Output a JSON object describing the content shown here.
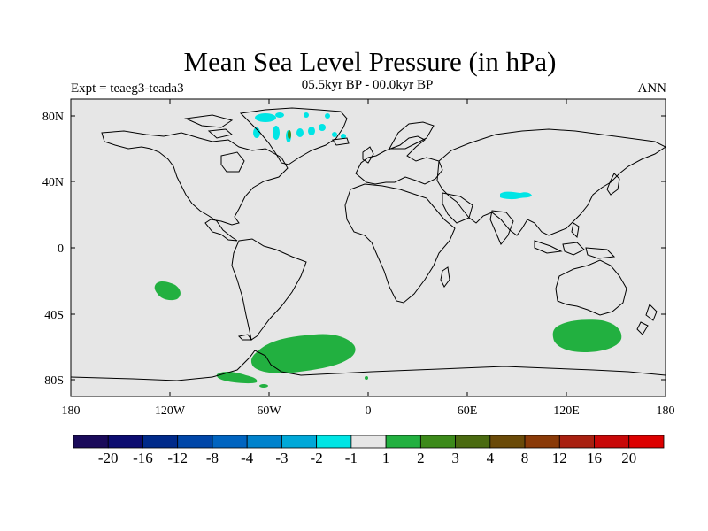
{
  "header": {
    "title": "Mean Sea Level Pressure (in hPa)",
    "subtitle": "05.5kyr BP - 00.0kyr BP",
    "left_label": "Expt = teaeg3-teada3",
    "right_label": "ANN"
  },
  "map": {
    "background_color": "#e6e6e6",
    "coastline_color": "#000000",
    "x_tick_labels": [
      "180",
      "120W",
      "60W",
      "0",
      "60E",
      "120E",
      "180"
    ],
    "y_tick_labels": [
      "80N",
      "40N",
      "0",
      "40S",
      "80S"
    ],
    "anomaly_regions": [
      {
        "name": "Greenland",
        "color": "#00e5e5",
        "level": "-1"
      },
      {
        "name": "Tibetan Plateau",
        "color": "#00e5e5",
        "level": "-1"
      },
      {
        "name": "South Pacific",
        "color": "#22b040",
        "level": "1"
      },
      {
        "name": "South Atlantic",
        "color": "#22b040",
        "level": "1"
      },
      {
        "name": "Southern Ocean south of Australia",
        "color": "#22b040",
        "level": "1"
      },
      {
        "name": "Antarctic Peninsula",
        "color": "#22b040",
        "level": "1"
      }
    ]
  },
  "colorbar": {
    "labels": [
      "-20",
      "-16",
      "-12",
      "-8",
      "-4",
      "-3",
      "-2",
      "-1",
      "1",
      "2",
      "3",
      "4",
      "8",
      "12",
      "16",
      "20"
    ],
    "colors": [
      "#1a0a5a",
      "#0c0c70",
      "#002a8a",
      "#0046a8",
      "#0064c0",
      "#0082cc",
      "#00a8d8",
      "#00e5e5",
      "#e6e6e6",
      "#22b040",
      "#3c8a1a",
      "#4a6a10",
      "#6a4a08",
      "#8a3a08",
      "#a82010",
      "#c80808",
      "#dc0000"
    ]
  }
}
